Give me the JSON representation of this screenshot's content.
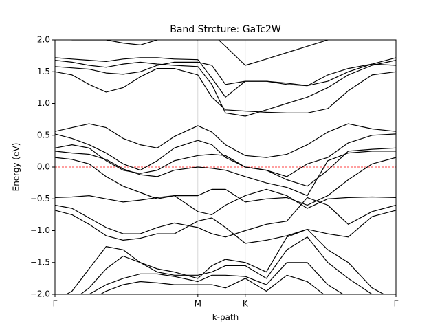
{
  "chart_data": {
    "type": "band-structure",
    "title": "Band Strcture: GaTc2W",
    "xlabel": "k-path",
    "ylabel": "Energy (eV)",
    "xlim": [
      0,
      1
    ],
    "ylim": [
      -2.0,
      2.0
    ],
    "xticks": [
      {
        "value": 0,
        "label": "Γ"
      },
      {
        "value": 0.419,
        "label": "M"
      },
      {
        "value": 0.558,
        "label": "K"
      },
      {
        "value": 1,
        "label": "Γ"
      }
    ],
    "yticks": [
      {
        "value": -2.0,
        "label": "−2.0"
      },
      {
        "value": -1.5,
        "label": "−1.5"
      },
      {
        "value": -1.0,
        "label": "−1.0"
      },
      {
        "value": -0.5,
        "label": "−0.5"
      },
      {
        "value": 0.0,
        "label": "0.0"
      },
      {
        "value": 0.5,
        "label": "0.5"
      },
      {
        "value": 1.0,
        "label": "1.0"
      },
      {
        "value": 1.5,
        "label": "1.5"
      },
      {
        "value": 2.0,
        "label": "2.0"
      }
    ],
    "xgrid": true,
    "fermi_level": 0,
    "fermi_color": "#ff0000",
    "line_color": "#000000",
    "x": [
      0,
      0.05,
      0.1,
      0.15,
      0.2,
      0.25,
      0.3,
      0.35,
      0.419,
      0.46,
      0.5,
      0.558,
      0.62,
      0.68,
      0.74,
      0.8,
      0.86,
      0.93,
      1.0
    ],
    "bands": [
      [
        1.72,
        1.7,
        1.68,
        1.66,
        1.7,
        1.72,
        1.72,
        1.7,
        1.69,
        1.4,
        1.1,
        1.35,
        1.35,
        1.3,
        1.28,
        1.35,
        1.5,
        1.62,
        1.72
      ],
      [
        1.68,
        1.65,
        1.6,
        1.57,
        1.62,
        1.65,
        1.62,
        1.6,
        1.58,
        1.3,
        0.85,
        0.8,
        0.9,
        1.0,
        1.1,
        1.25,
        1.45,
        1.6,
        1.68
      ],
      [
        1.5,
        1.45,
        1.3,
        1.18,
        1.25,
        1.42,
        1.55,
        1.55,
        1.45,
        1.1,
        0.9,
        0.88,
        0.86,
        0.85,
        0.85,
        0.92,
        1.2,
        1.45,
        1.5
      ],
      [
        1.58,
        1.56,
        1.54,
        1.48,
        1.46,
        1.5,
        1.6,
        1.65,
        1.65,
        1.6,
        1.3,
        1.35,
        1.35,
        1.32,
        1.28,
        1.45,
        1.55,
        1.62,
        1.6
      ],
      [
        2.1,
        2.0,
        2.0,
        2.0,
        1.95,
        1.92,
        2.0,
        2.05,
        2.0,
        2.1,
        1.9,
        1.6,
        1.7,
        1.8,
        1.9,
        2.0,
        2.05,
        2.1,
        2.1
      ],
      [
        0.56,
        0.62,
        0.68,
        0.62,
        0.45,
        0.35,
        0.3,
        0.48,
        0.65,
        0.55,
        0.35,
        0.18,
        0.15,
        0.2,
        0.35,
        0.55,
        0.68,
        0.6,
        0.56
      ],
      [
        0.52,
        0.45,
        0.35,
        0.22,
        0.05,
        -0.05,
        0.1,
        0.3,
        0.42,
        0.35,
        0.15,
        0.0,
        -0.05,
        -0.15,
        0.05,
        0.15,
        0.38,
        0.5,
        0.52
      ],
      [
        0.3,
        0.35,
        0.3,
        0.1,
        -0.05,
        -0.1,
        -0.05,
        0.1,
        0.18,
        0.2,
        0.18,
        0.0,
        -0.05,
        -0.2,
        -0.3,
        -0.05,
        0.25,
        0.28,
        0.3
      ],
      [
        0.25,
        0.22,
        0.2,
        0.12,
        -0.03,
        -0.12,
        -0.15,
        -0.05,
        0.0,
        -0.02,
        -0.05,
        -0.15,
        -0.25,
        -0.32,
        -0.45,
        0.1,
        0.22,
        0.25,
        0.25
      ],
      [
        0.15,
        0.12,
        0.05,
        -0.15,
        -0.3,
        -0.4,
        -0.5,
        -0.45,
        -0.45,
        -0.35,
        -0.35,
        -0.55,
        -0.5,
        -0.48,
        -0.6,
        -0.45,
        -0.2,
        0.05,
        0.15
      ],
      [
        -0.48,
        -0.47,
        -0.45,
        -0.5,
        -0.55,
        -0.52,
        -0.48,
        -0.45,
        -0.7,
        -0.75,
        -0.6,
        -0.45,
        -0.35,
        -0.45,
        -0.65,
        -0.5,
        -0.48,
        -0.47,
        -0.48
      ],
      [
        -0.6,
        -0.65,
        -0.8,
        -0.95,
        -1.05,
        -1.05,
        -0.95,
        -0.88,
        -0.95,
        -1.05,
        -1.1,
        -1.0,
        -0.9,
        -0.85,
        -0.48,
        -0.6,
        -0.9,
        -0.7,
        -0.6
      ],
      [
        -0.68,
        -0.75,
        -0.9,
        -1.08,
        -1.15,
        -1.12,
        -1.05,
        -1.05,
        -0.85,
        -0.8,
        -0.95,
        -1.2,
        -1.15,
        -1.08,
        -0.98,
        -1.05,
        -1.1,
        -0.78,
        -0.68
      ],
      [
        -2.1,
        -1.95,
        -1.6,
        -1.25,
        -1.3,
        -1.5,
        -1.6,
        -1.65,
        -1.75,
        -1.55,
        -1.45,
        -1.5,
        -1.65,
        -1.1,
        -0.98,
        -1.3,
        -1.5,
        -1.9,
        -2.1
      ],
      [
        -2.2,
        -2.1,
        -1.9,
        -1.6,
        -1.4,
        -1.5,
        -1.65,
        -1.7,
        -1.7,
        -1.65,
        -1.55,
        -1.55,
        -1.75,
        -1.3,
        -1.1,
        -1.5,
        -1.75,
        -2.0,
        -2.2
      ],
      [
        -2.3,
        -2.2,
        -2.0,
        -1.85,
        -1.75,
        -1.68,
        -1.68,
        -1.72,
        -1.8,
        -1.7,
        -1.7,
        -1.72,
        -1.85,
        -1.5,
        -1.5,
        -1.85,
        -2.05,
        -2.2,
        -2.3
      ],
      [
        -2.4,
        -2.3,
        -2.1,
        -1.95,
        -1.85,
        -1.8,
        -1.82,
        -1.85,
        -1.85,
        -1.85,
        -1.9,
        -1.75,
        -1.95,
        -1.7,
        -1.8,
        -2.05,
        -2.2,
        -2.3,
        -2.4
      ]
    ]
  }
}
